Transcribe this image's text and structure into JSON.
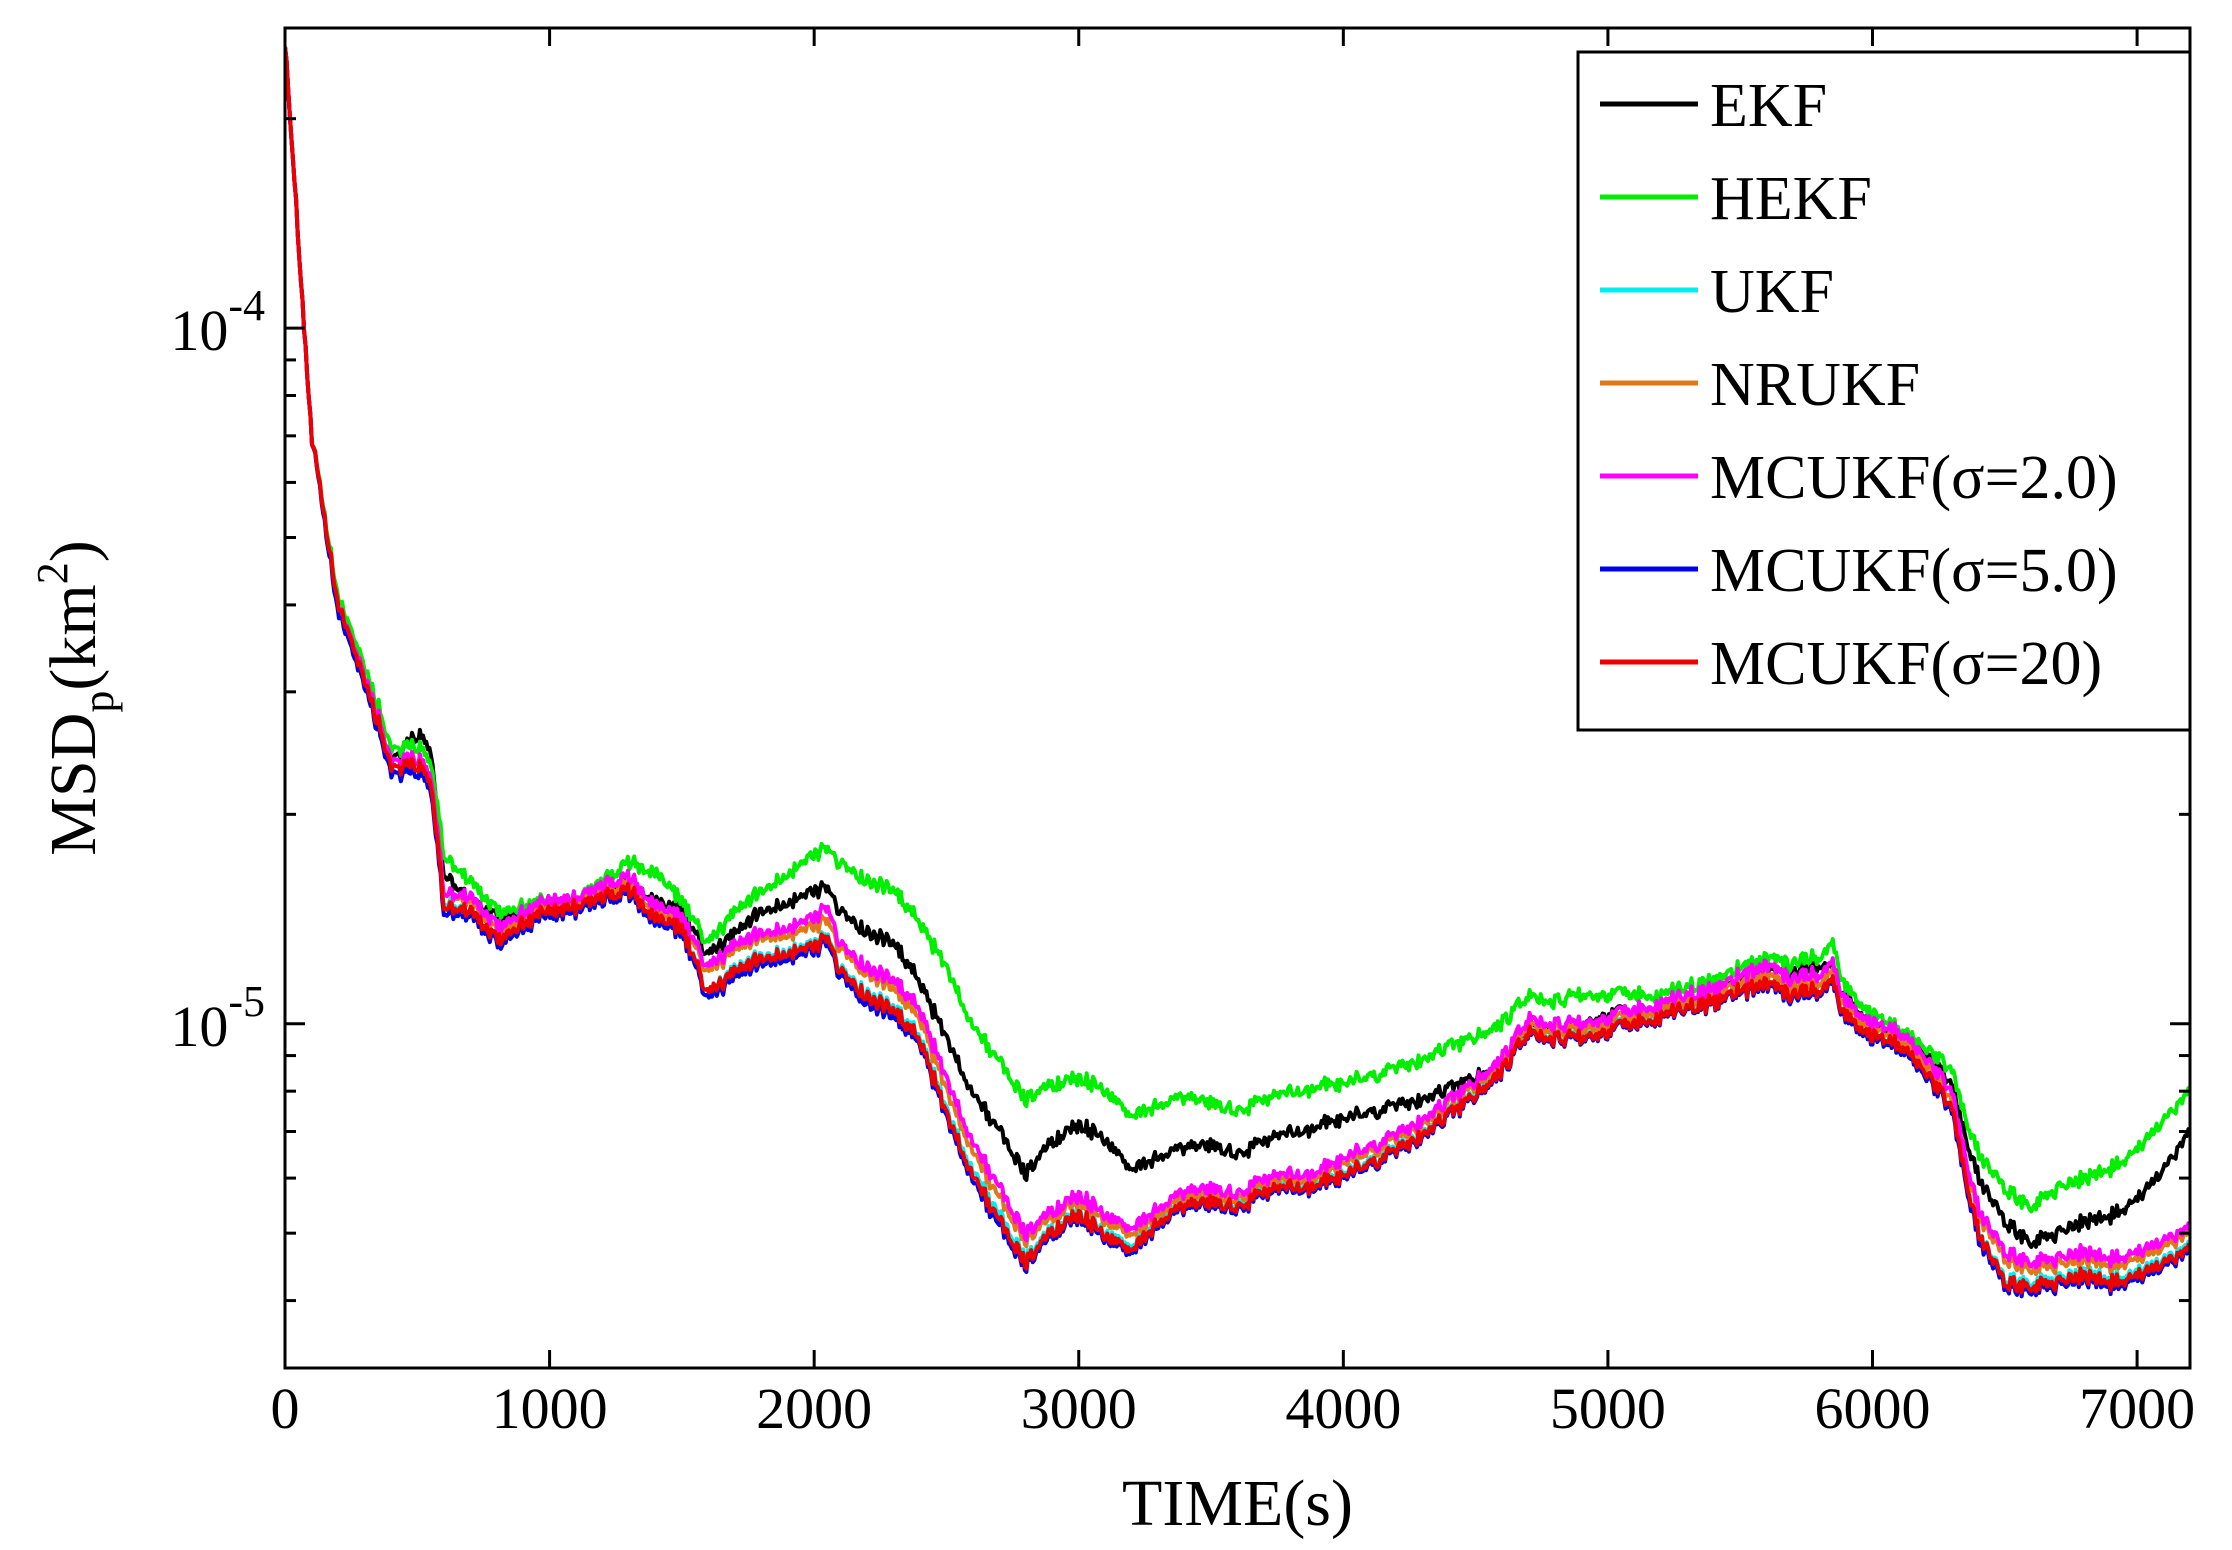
{
  "chart_data": {
    "type": "line",
    "xlabel": "TIME(s)",
    "ylabel": {
      "main": "MSD",
      "sub": "p",
      "pre": "(km",
      "sup": "2",
      "post": ")"
    },
    "xlim": [
      0,
      7200
    ],
    "ylim": [
      3.2e-06,
      0.00027
    ],
    "yscale": "log",
    "x_ticks": [
      0,
      1000,
      2000,
      3000,
      4000,
      5000,
      6000,
      7000
    ],
    "x_tick_labels": [
      "0",
      "1000",
      "2000",
      "3000",
      "4000",
      "5000",
      "6000",
      "7000"
    ],
    "y_ticks": [
      1e-05,
      0.0001
    ],
    "y_tick_labels": [
      {
        "base": "10",
        "exp": "-5"
      },
      {
        "base": "10",
        "exp": "-4"
      }
    ],
    "grid": false,
    "legend_position": "top-right",
    "x": [
      0,
      100,
      200,
      300,
      400,
      500,
      550,
      600,
      700,
      800,
      900,
      1000,
      1100,
      1200,
      1300,
      1400,
      1500,
      1600,
      1700,
      1800,
      1900,
      2000,
      2050,
      2100,
      2200,
      2300,
      2400,
      2500,
      2600,
      2700,
      2800,
      2900,
      3000,
      3100,
      3200,
      3300,
      3400,
      3500,
      3600,
      3700,
      3800,
      3900,
      4000,
      4200,
      4400,
      4600,
      4700,
      4800,
      4900,
      5000,
      5200,
      5400,
      5600,
      5700,
      5800,
      5850,
      5900,
      6000,
      6100,
      6200,
      6300,
      6400,
      6500,
      6600,
      6700,
      6800,
      6900,
      7000,
      7100,
      7200
    ],
    "series": [
      {
        "name": "EKF",
        "color": "#000000",
        "values": [
          0.00026,
          7e-05,
          4e-05,
          3.2e-05,
          2.4e-05,
          2.6e-05,
          2.5e-05,
          1.65e-05,
          1.5e-05,
          1.42e-05,
          1.45e-05,
          1.48e-05,
          1.5e-05,
          1.55e-05,
          1.6e-05,
          1.5e-05,
          1.45e-05,
          1.25e-05,
          1.35e-05,
          1.45e-05,
          1.5e-05,
          1.55e-05,
          1.58e-05,
          1.45e-05,
          1.35e-05,
          1.3e-05,
          1.15e-05,
          9.5e-06,
          8e-06,
          7e-06,
          6.1e-06,
          6.8e-06,
          7.2e-06,
          6.8e-06,
          6.2e-06,
          6.4e-06,
          6.6e-06,
          6.7e-06,
          6.5e-06,
          6.8e-06,
          7e-06,
          7.1e-06,
          7.3e-06,
          7.6e-06,
          8e-06,
          8.8e-06,
          9.8e-06,
          1e-05,
          1e-05,
          1.03e-05,
          1.05e-05,
          1.1e-05,
          1.2e-05,
          1.18e-05,
          1.22e-05,
          1.2e-05,
          1.08e-05,
          1e-05,
          9.5e-06,
          9e-06,
          8.2e-06,
          6e-06,
          5.2e-06,
          4.8e-06,
          5e-06,
          5.2e-06,
          5.3e-06,
          5.6e-06,
          6.2e-06,
          7e-06
        ]
      },
      {
        "name": "HEKF",
        "color": "#00ee00",
        "values": [
          0.00026,
          7e-05,
          4.1e-05,
          3.3e-05,
          2.5e-05,
          2.5e-05,
          2.4e-05,
          1.75e-05,
          1.6e-05,
          1.45e-05,
          1.48e-05,
          1.5e-05,
          1.52e-05,
          1.6e-05,
          1.7e-05,
          1.65e-05,
          1.5e-05,
          1.3e-05,
          1.45e-05,
          1.55e-05,
          1.65e-05,
          1.75e-05,
          1.8e-05,
          1.7e-05,
          1.6e-05,
          1.55e-05,
          1.4e-05,
          1.2e-05,
          1e-05,
          8.8e-06,
          7.8e-06,
          8.2e-06,
          8.4e-06,
          8e-06,
          7.4e-06,
          7.6e-06,
          7.8e-06,
          7.7e-06,
          7.5e-06,
          7.8e-06,
          8e-06,
          8.1e-06,
          8.2e-06,
          8.6e-06,
          9.2e-06,
          1e-05,
          1.1e-05,
          1.08e-05,
          1.1e-05,
          1.1e-05,
          1.1e-05,
          1.15e-05,
          1.25e-05,
          1.22e-05,
          1.25e-05,
          1.3e-05,
          1.12e-05,
          1.03e-05,
          9.8e-06,
          9.2e-06,
          8.6e-06,
          6.5e-06,
          5.8e-06,
          5.4e-06,
          5.8e-06,
          6e-06,
          6.2e-06,
          6.6e-06,
          7.3e-06,
          8e-06
        ]
      },
      {
        "name": "UKF",
        "color": "#00eeee",
        "values": [
          0.00026,
          7e-05,
          3.9e-05,
          3.1e-05,
          2.3e-05,
          2.3e-05,
          2.2e-05,
          1.5e-05,
          1.45e-05,
          1.32e-05,
          1.4e-05,
          1.45e-05,
          1.48e-05,
          1.52e-05,
          1.55e-05,
          1.42e-05,
          1.38e-05,
          1.1e-05,
          1.2e-05,
          1.25e-05,
          1.28e-05,
          1.3e-05,
          1.35e-05,
          1.2e-05,
          1.1e-05,
          1.05e-05,
          9.6e-06,
          7.5e-06,
          6.2e-06,
          5.3e-06,
          4.6e-06,
          5.1e-06,
          5.4e-06,
          5e-06,
          4.8e-06,
          5.2e-06,
          5.5e-06,
          5.6e-06,
          5.5e-06,
          5.8e-06,
          5.9e-06,
          5.9e-06,
          6.1e-06,
          6.6e-06,
          7.4e-06,
          8.6e-06,
          9.8e-06,
          9.6e-06,
          9.6e-06,
          9.8e-06,
          1.03e-05,
          1.08e-05,
          1.15e-05,
          1.1e-05,
          1.12e-05,
          1.15e-05,
          1.02e-05,
          9.6e-06,
          9.3e-06,
          8.5e-06,
          7.6e-06,
          5e-06,
          4.3e-06,
          4.2e-06,
          4.3e-06,
          4.4e-06,
          4.3e-06,
          4.4e-06,
          4.6e-06,
          4.8e-06
        ]
      },
      {
        "name": "NRUKF",
        "color": "#e07818",
        "values": [
          0.00026,
          7e-05,
          4e-05,
          3.2e-05,
          2.4e-05,
          2.4e-05,
          2.3e-05,
          1.55e-05,
          1.5e-05,
          1.35e-05,
          1.42e-05,
          1.47e-05,
          1.5e-05,
          1.55e-05,
          1.58e-05,
          1.45e-05,
          1.4e-05,
          1.18e-05,
          1.28e-05,
          1.33e-05,
          1.35e-05,
          1.38e-05,
          1.42e-05,
          1.28e-05,
          1.18e-05,
          1.12e-05,
          1.02e-05,
          8e-06,
          6.6e-06,
          5.6e-06,
          4.9e-06,
          5.3e-06,
          5.6e-06,
          5.2e-06,
          5e-06,
          5.3e-06,
          5.6e-06,
          5.7e-06,
          5.6e-06,
          5.9e-06,
          6e-06,
          6e-06,
          6.3e-06,
          6.8e-06,
          7.6e-06,
          8.8e-06,
          1e-05,
          9.8e-06,
          9.8e-06,
          1e-05,
          1.05e-05,
          1.1e-05,
          1.18e-05,
          1.13e-05,
          1.15e-05,
          1.18e-05,
          1.05e-05,
          9.8e-06,
          9.5e-06,
          8.7e-06,
          7.8e-06,
          5.3e-06,
          4.6e-06,
          4.4e-06,
          4.5e-06,
          4.6e-06,
          4.5e-06,
          4.6e-06,
          4.8e-06,
          5e-06
        ]
      },
      {
        "name": "MCUKF(σ=2.0)",
        "color": "#ff00ff",
        "values": [
          0.00026,
          7e-05,
          4e-05,
          3.2e-05,
          2.4e-05,
          2.4e-05,
          2.3e-05,
          1.55e-05,
          1.52e-05,
          1.38e-05,
          1.45e-05,
          1.5e-05,
          1.52e-05,
          1.58e-05,
          1.62e-05,
          1.48e-05,
          1.42e-05,
          1.2e-05,
          1.3e-05,
          1.35e-05,
          1.38e-05,
          1.42e-05,
          1.48e-05,
          1.3e-05,
          1.2e-05,
          1.15e-05,
          1.05e-05,
          8.3e-06,
          6.8e-06,
          5.8e-06,
          5e-06,
          5.4e-06,
          5.7e-06,
          5.3e-06,
          5.1e-06,
          5.4e-06,
          5.7e-06,
          5.8e-06,
          5.7e-06,
          6e-06,
          6.1e-06,
          6.1e-06,
          6.4e-06,
          6.9e-06,
          7.7e-06,
          8.9e-06,
          1.02e-05,
          1e-05,
          1e-05,
          1.02e-05,
          1.07e-05,
          1.12e-05,
          1.22e-05,
          1.16e-05,
          1.18e-05,
          1.22e-05,
          1.07e-05,
          1e-05,
          9.7e-06,
          8.9e-06,
          8e-06,
          5.4e-06,
          4.7e-06,
          4.5e-06,
          4.6e-06,
          4.7e-06,
          4.6e-06,
          4.7e-06,
          4.9e-06,
          5.1e-06
        ]
      },
      {
        "name": "MCUKF(σ=5.0)",
        "color": "#0000ee",
        "values": [
          0.00026,
          7e-05,
          3.9e-05,
          3.1e-05,
          2.3e-05,
          2.3e-05,
          2.2e-05,
          1.45e-05,
          1.43e-05,
          1.3e-05,
          1.38e-05,
          1.43e-05,
          1.46e-05,
          1.5e-05,
          1.53e-05,
          1.4e-05,
          1.35e-05,
          1.08e-05,
          1.17e-05,
          1.22e-05,
          1.25e-05,
          1.27e-05,
          1.32e-05,
          1.17e-05,
          1.07e-05,
          1.02e-05,
          9.4e-06,
          7.3e-06,
          6e-06,
          5.1e-06,
          4.5e-06,
          5e-06,
          5.3e-06,
          4.9e-06,
          4.7e-06,
          5.1e-06,
          5.4e-06,
          5.5e-06,
          5.4e-06,
          5.7e-06,
          5.8e-06,
          5.8e-06,
          6e-06,
          6.5e-06,
          7.3e-06,
          8.5e-06,
          9.7e-06,
          9.5e-06,
          9.5e-06,
          9.7e-06,
          1.02e-05,
          1.07e-05,
          1.14e-05,
          1.09e-05,
          1.11e-05,
          1.14e-05,
          1.01e-05,
          9.5e-06,
          9.2e-06,
          8.4e-06,
          7.5e-06,
          4.9e-06,
          4.2e-06,
          4.1e-06,
          4.2e-06,
          4.3e-06,
          4.2e-06,
          4.3e-06,
          4.5e-06,
          4.7e-06
        ]
      },
      {
        "name": "MCUKF(σ=20)",
        "color": "#ee0000",
        "values": [
          0.00026,
          7e-05,
          4e-05,
          3.15e-05,
          2.35e-05,
          2.35e-05,
          2.25e-05,
          1.48e-05,
          1.45e-05,
          1.32e-05,
          1.4e-05,
          1.45e-05,
          1.48e-05,
          1.52e-05,
          1.55e-05,
          1.42e-05,
          1.37e-05,
          1.1e-05,
          1.19e-05,
          1.24e-05,
          1.27e-05,
          1.29e-05,
          1.34e-05,
          1.19e-05,
          1.09e-05,
          1.04e-05,
          9.5e-06,
          7.4e-06,
          6.1e-06,
          5.2e-06,
          4.55e-06,
          5.05e-06,
          5.35e-06,
          4.95e-06,
          4.75e-06,
          5.15e-06,
          5.45e-06,
          5.55e-06,
          5.45e-06,
          5.75e-06,
          5.85e-06,
          5.85e-06,
          6.05e-06,
          6.55e-06,
          7.35e-06,
          8.55e-06,
          9.75e-06,
          9.55e-06,
          9.55e-06,
          9.75e-06,
          1.025e-05,
          1.075e-05,
          1.15e-05,
          1.1e-05,
          1.12e-05,
          1.15e-05,
          1.02e-05,
          9.6e-06,
          9.3e-06,
          8.5e-06,
          7.6e-06,
          5e-06,
          4.25e-06,
          4.15e-06,
          4.25e-06,
          4.35e-06,
          4.25e-06,
          4.35e-06,
          4.55e-06,
          4.75e-06
        ]
      }
    ]
  }
}
